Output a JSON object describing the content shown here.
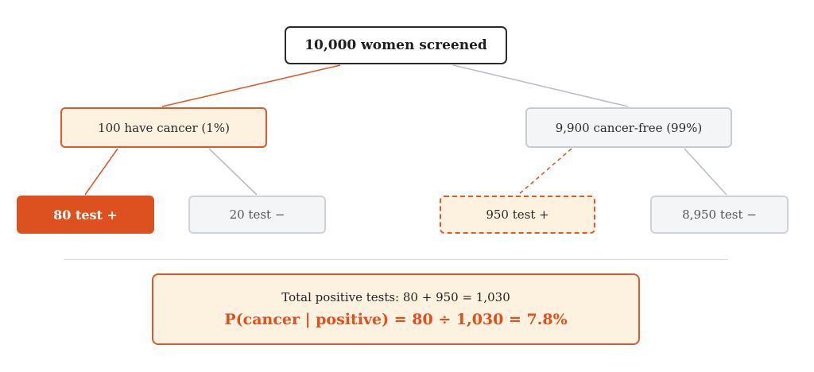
{
  "tree": {
    "root": "10,000 women screened",
    "cancer_branch": "100 have cancer (1%)",
    "free_branch": "9,900 cancer-free (99%)",
    "true_positive": "80 test +",
    "false_negative": "20 test −",
    "false_positive": "950 test +",
    "true_negative": "8,950 test −"
  },
  "summary": {
    "total_positive": "Total positive tests: 80 + 950 = 1,030",
    "probability": "P(cancer | positive) = 80 ÷ 1,030 = 7.8%"
  },
  "colors": {
    "accent": "#dc511f",
    "accent_fill": "#fdf1df",
    "neutral_fill": "#f4f5f7",
    "neutral_line": "#b9bfc8"
  }
}
